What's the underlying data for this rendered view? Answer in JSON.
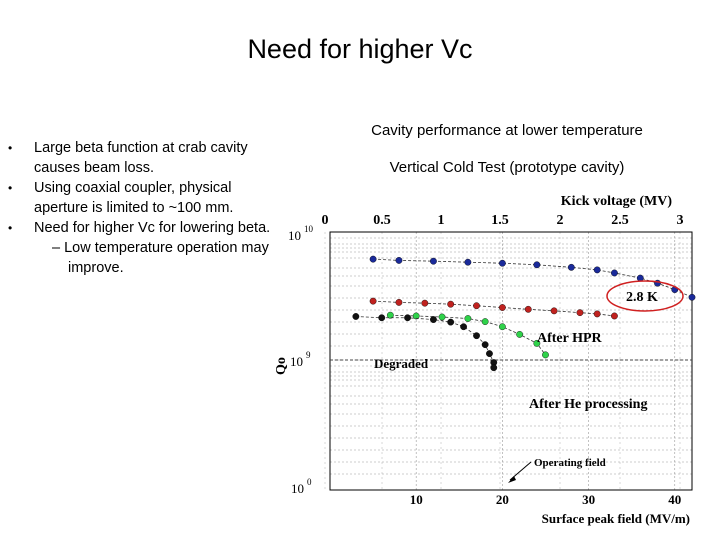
{
  "slide": {
    "title": "Need for higher Vc",
    "bullets": [
      "Large beta function at crab cavity causes beam loss.",
      "Using coaxial coupler, physical aperture is limited to ~100 mm.",
      "Need for higher Vc for lowering beta."
    ],
    "sub_bullet": "– Low temperature operation may improve.",
    "bullet_glyph": "•"
  },
  "figure": {
    "caption": "Cavity performance at lower temperature",
    "subcaption": "Vertical Cold Test (prototype cavity)"
  },
  "chart_data": {
    "type": "scatter",
    "top_axis": {
      "label": "Kick voltage (MV)",
      "ticks": [
        "0",
        "0.5",
        "1",
        "1.5",
        "2",
        "2.5",
        "3"
      ]
    },
    "xlabel": "Surface peak field (MV/m)",
    "x_ticks": [
      "10",
      "20",
      "30",
      "40"
    ],
    "xlim": [
      0,
      42
    ],
    "ylabel": "Qo",
    "y_tick_labels": {
      "top": "10",
      "top_exp": "10",
      "mid": "10",
      "mid_exp": "9",
      "bottom": "10",
      "bottom_exp": "0"
    },
    "y_log": true,
    "grid": true,
    "annotations": {
      "temperature": "2.8 K",
      "after_hpr": "After HPR",
      "degraded": "Degraded",
      "after_he": "After He processing",
      "operating_field": "Operating field"
    },
    "series": [
      {
        "name": "2.8 K",
        "color": "#1a2a9a",
        "points": [
          [
            5,
            1.06
          ],
          [
            8,
            1.11
          ],
          [
            12,
            1.14
          ],
          [
            16,
            1.18
          ],
          [
            20,
            1.22
          ],
          [
            24,
            1.28
          ],
          [
            28,
            1.38
          ],
          [
            31,
            1.48
          ],
          [
            33,
            1.6
          ],
          [
            36,
            1.8
          ],
          [
            38,
            2.0
          ],
          [
            40,
            2.25
          ],
          [
            42,
            2.55
          ]
        ]
      },
      {
        "name": "After HPR",
        "color": "#c0221f",
        "points": [
          [
            5,
            2.7
          ],
          [
            8,
            2.75
          ],
          [
            11,
            2.78
          ],
          [
            14,
            2.82
          ],
          [
            17,
            2.88
          ],
          [
            20,
            2.95
          ],
          [
            23,
            3.02
          ],
          [
            26,
            3.08
          ],
          [
            29,
            3.15
          ],
          [
            31,
            3.2
          ],
          [
            33,
            3.28
          ]
        ]
      },
      {
        "name": "After He processing",
        "color": "#2fd24a",
        "points": [
          [
            7,
            3.25
          ],
          [
            10,
            3.28
          ],
          [
            13,
            3.32
          ],
          [
            16,
            3.38
          ],
          [
            18,
            3.5
          ],
          [
            20,
            3.7
          ],
          [
            22,
            4.0
          ],
          [
            24,
            4.35
          ],
          [
            25,
            4.8
          ]
        ]
      },
      {
        "name": "Degraded",
        "color": "#111111",
        "points": [
          [
            3,
            3.3
          ],
          [
            6,
            3.35
          ],
          [
            9,
            3.35
          ],
          [
            12,
            3.42
          ],
          [
            14,
            3.52
          ],
          [
            15.5,
            3.7
          ],
          [
            17,
            4.05
          ],
          [
            18,
            4.4
          ],
          [
            18.5,
            4.75
          ],
          [
            19,
            5.1
          ],
          [
            19,
            5.3
          ]
        ]
      }
    ]
  }
}
